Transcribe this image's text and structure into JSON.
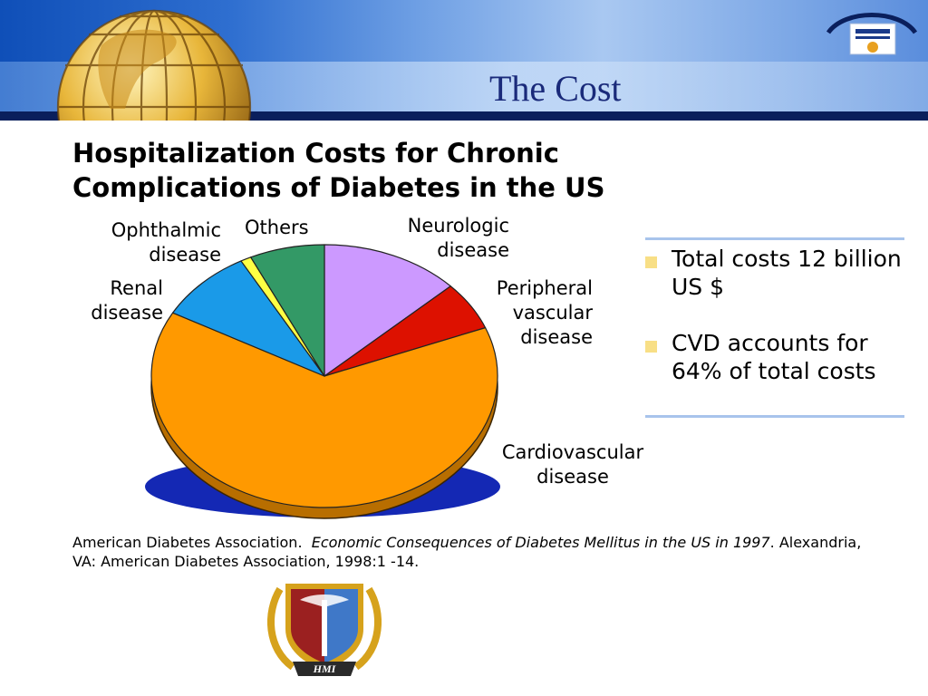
{
  "slide": {
    "title": "The Cost",
    "emblem_text": "HMI"
  },
  "chart_data": {
    "type": "pie",
    "title": "Hospitalization Costs for Chronic Complications of Diabetes in the US",
    "slices": [
      {
        "label_lines": [
          "Neurologic",
          "disease"
        ],
        "value": 13,
        "color": "#cc99ff"
      },
      {
        "label_lines": [
          "Peripheral",
          "vascular",
          "disease"
        ],
        "value": 6,
        "color": "#dd1100"
      },
      {
        "label_lines": [
          "Cardiovascular",
          "disease"
        ],
        "value": 64,
        "color": "#ff9900"
      },
      {
        "label_lines": [
          "Renal",
          "disease"
        ],
        "value": 9,
        "color": "#1a9ae8"
      },
      {
        "label_lines": [
          "Ophthalmic",
          "disease"
        ],
        "value": 1,
        "color": "#ffff44"
      },
      {
        "label_lines": [
          "Others"
        ],
        "value": 7,
        "color": "#339966"
      }
    ],
    "legend": "none"
  },
  "info": {
    "bullets": [
      "Total costs 12 billion US $",
      "CVD accounts for 64% of total costs"
    ]
  },
  "citation": {
    "author": "American Diabetes Association.",
    "work": "Economic Consequences of Diabetes Mellitus in the US in 1997",
    "rest": ". Alexandria, VA: American Diabetes Association, 1998:1 -14."
  },
  "colors": {
    "title_text": "#1a2a7a",
    "header_dark": "#0a1f5c",
    "shadow": "#1428b4",
    "bullet": "#f8df86",
    "divider": "#a8c4ec"
  }
}
